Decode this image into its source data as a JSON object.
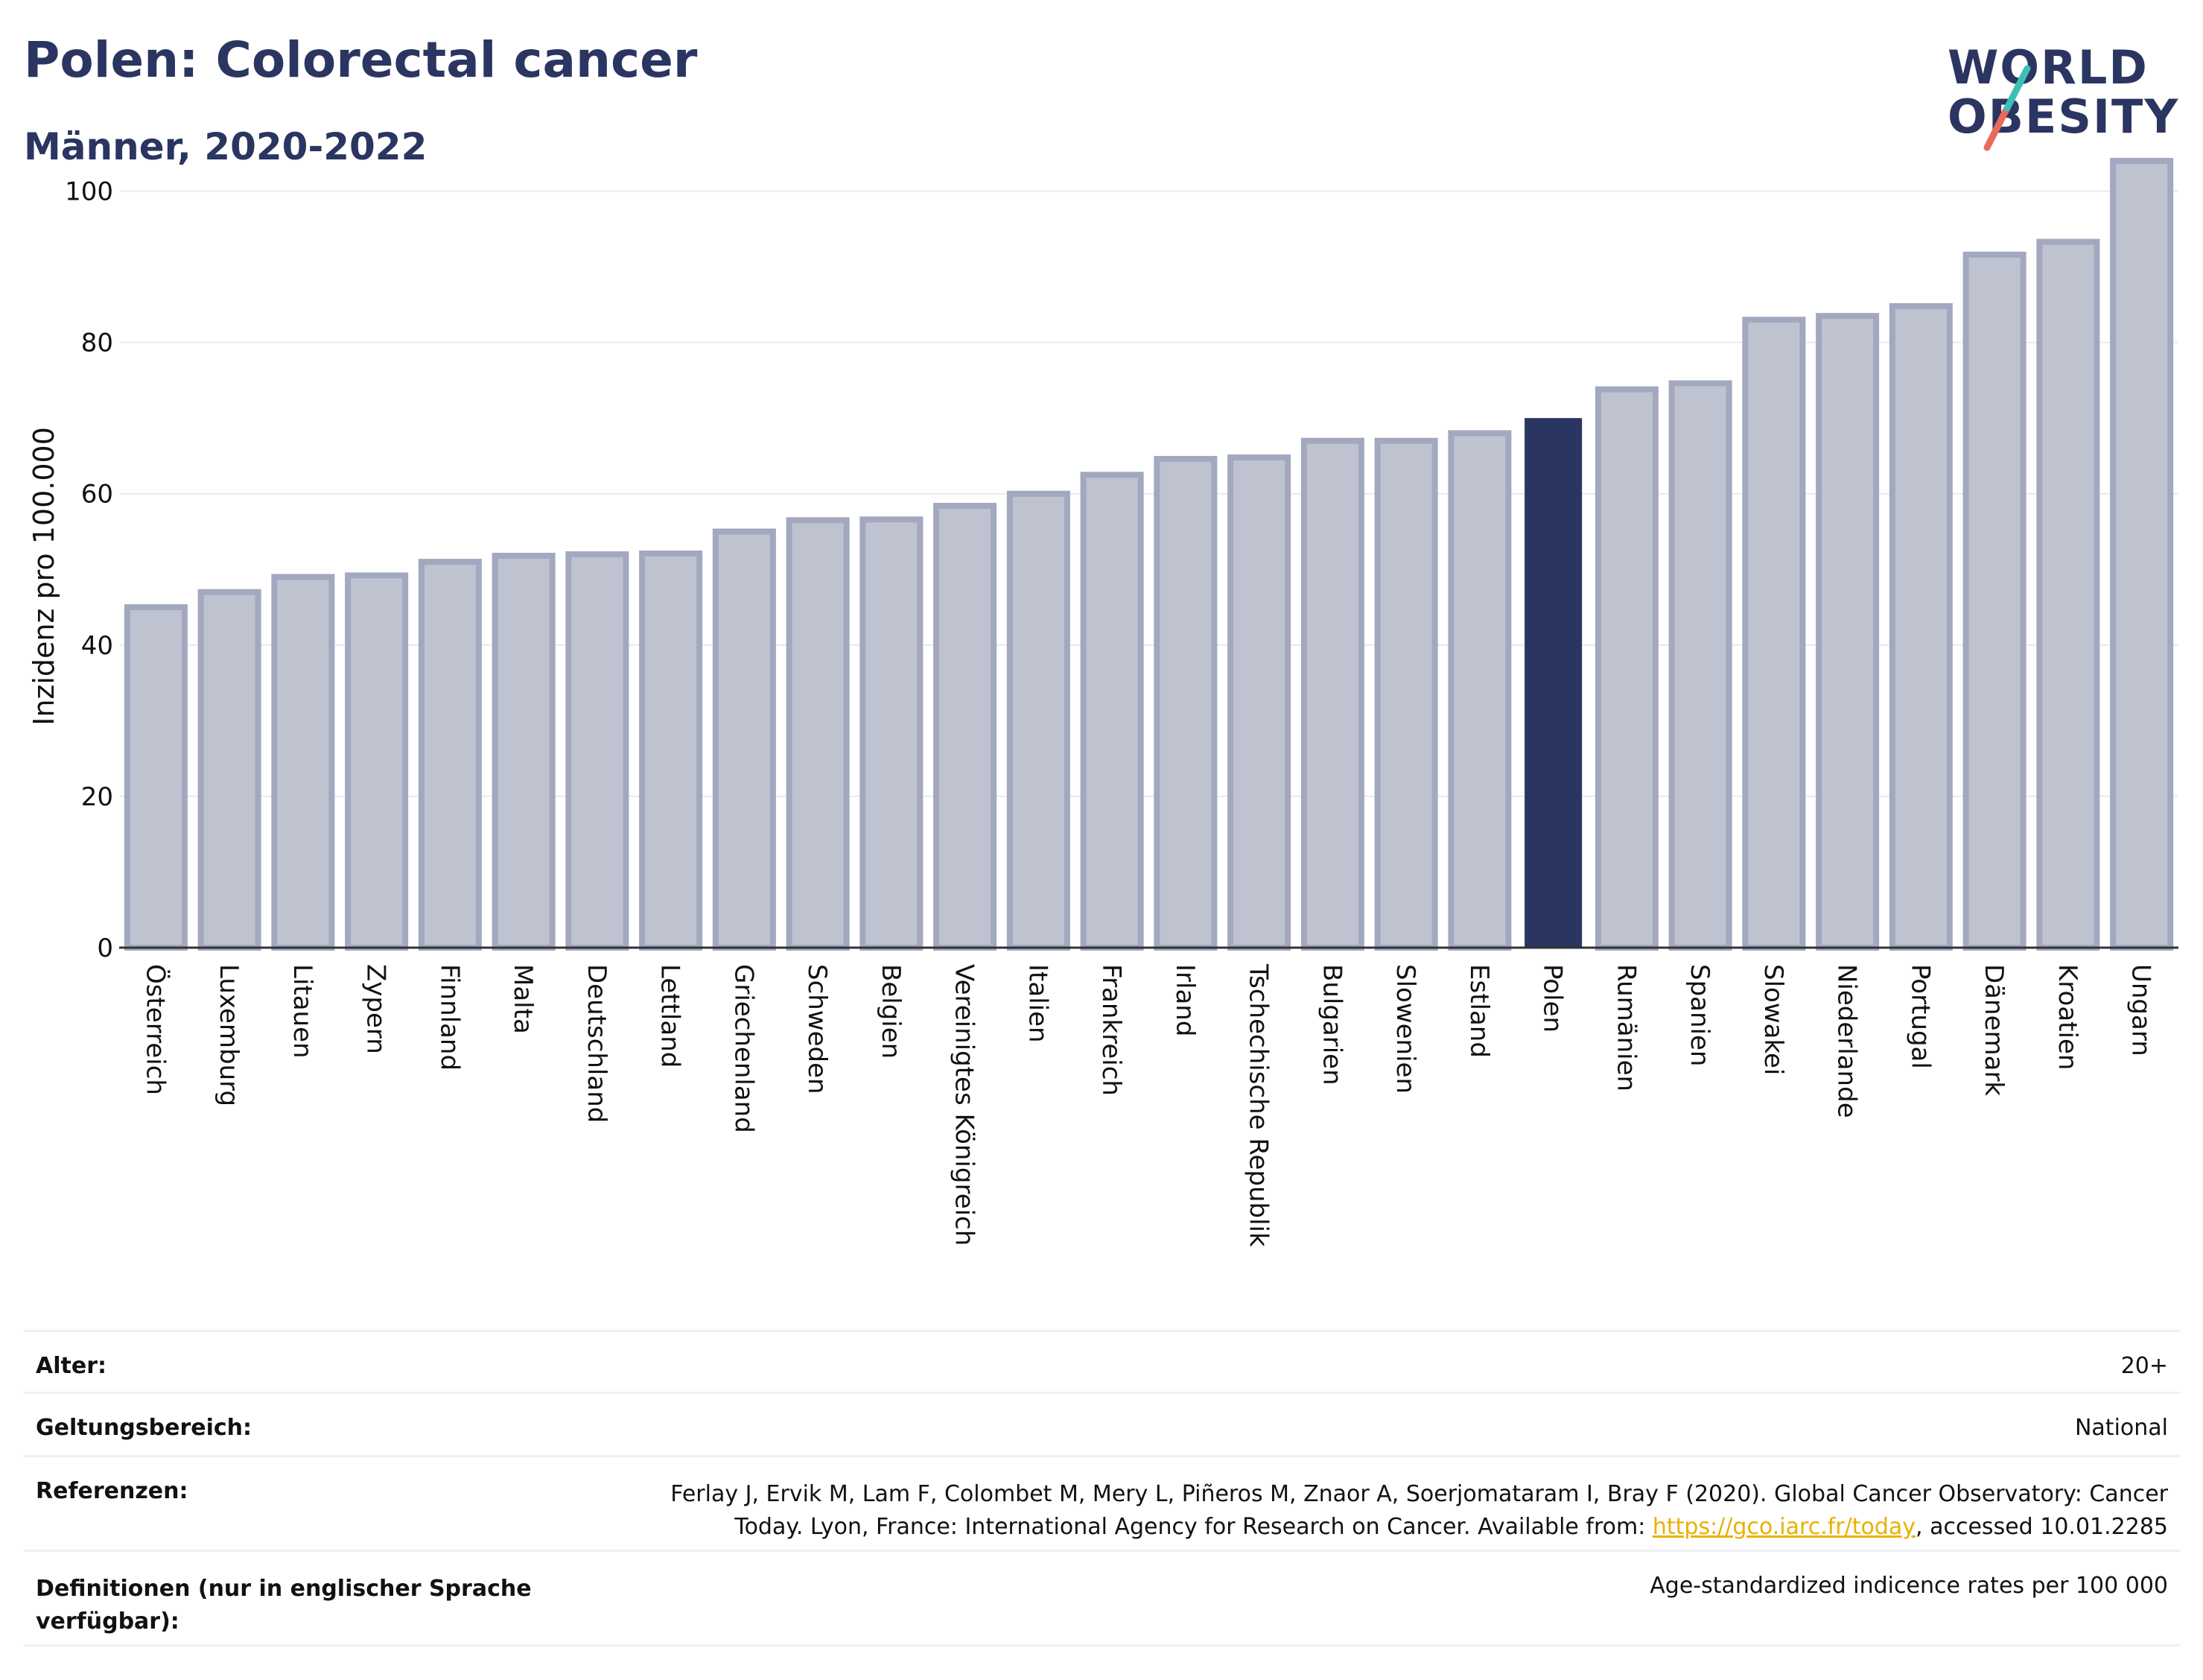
{
  "header": {
    "title": "Polen: Colorectal cancer",
    "subtitle": "Männer, 2020-2022",
    "logo_text": "WORLD OBESITY"
  },
  "colors": {
    "bar": "#bfc3d0",
    "bar_edge": "#a2a8bf",
    "highlight": "#2a3561",
    "logo_slash_top": "#3cc0b6",
    "logo_slash_bottom": "#ea6a5b"
  },
  "chart_data": {
    "type": "bar",
    "ylabel": "Inzidenz pro 100.000",
    "ylim": [
      0,
      110
    ],
    "yticks": [
      0,
      20,
      40,
      60,
      80,
      100
    ],
    "grid": true,
    "highlight_category": "Polen",
    "categories": [
      "Österreich",
      "Luxemburg",
      "Litauen",
      "Zypern",
      "Finnland",
      "Malta",
      "Deutschland",
      "Lettland",
      "Griechenland",
      "Schweden",
      "Belgien",
      "Vereinigtes Königreich",
      "Italien",
      "Frankreich",
      "Irland",
      "Tschechische Republik",
      "Bulgarien",
      "Slowenien",
      "Estland",
      "Polen",
      "Rumänien",
      "Spanien",
      "Slowakei",
      "Niederlande",
      "Portugal",
      "Dänemark",
      "Kroatien",
      "Ungarn"
    ],
    "values": [
      45,
      47,
      49,
      49.2,
      51,
      51.8,
      52,
      52.1,
      55,
      56.5,
      56.6,
      58.4,
      60,
      62.5,
      64.6,
      64.8,
      67,
      67,
      68,
      70,
      73.8,
      74.6,
      83,
      83.5,
      84.8,
      91.6,
      93.3,
      104
    ]
  },
  "meta": {
    "age_label": "Alter:",
    "age_value": "20+",
    "scope_label": "Geltungsbereich:",
    "scope_value": "National",
    "ref_label": "Referenzen:",
    "ref_line1": "Ferlay J, Ervik M, Lam F, Colombet M, Mery L, Piñeros M, Znaor A, Soerjomataram I, Bray F (2020). Global Cancer Observatory: Cancer",
    "ref_line2_pre": "Today. Lyon, France: International Agency for Research on Cancer. Available from: ",
    "ref_link": "https://gco.iarc.fr/today",
    "ref_line2_post": ", accessed 10.01.2285",
    "def_label_line1": "Definitionen (nur in englischer Sprache",
    "def_label_line2": "verfügbar):",
    "def_value": "Age-standardized indicence rates per 100 000"
  }
}
